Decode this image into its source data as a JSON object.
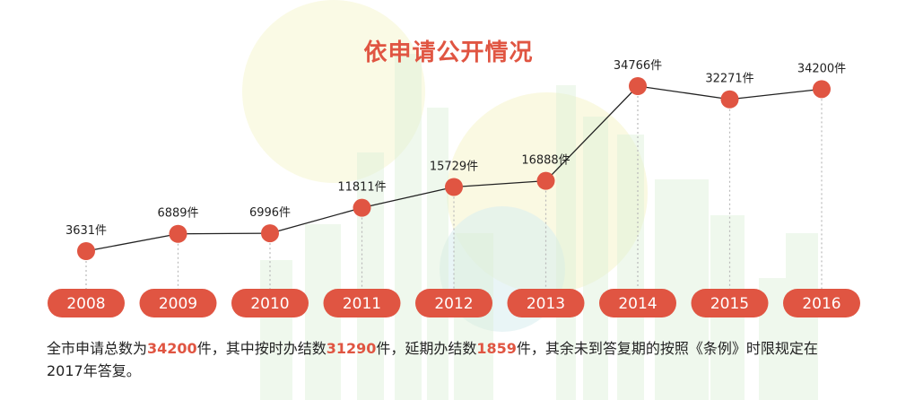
{
  "title": "依申请公开情况",
  "colors": {
    "accent": "#e05542",
    "line": "#222222",
    "dotted": "#b9b9b9",
    "pill_text": "#ffffff",
    "bg_green": "#dcefd6",
    "bg_yellow": "#f6f5cf",
    "bg_blue": "#dbeef0"
  },
  "chart_data": {
    "type": "line",
    "categories": [
      "2008",
      "2009",
      "2010",
      "2011",
      "2012",
      "2013",
      "2014",
      "2015",
      "2016"
    ],
    "values": [
      3631,
      6889,
      6996,
      11811,
      15729,
      16888,
      34766,
      32271,
      34200
    ],
    "unit": "件",
    "value_labels": [
      "3631件",
      "6889件",
      "6996件",
      "11811件",
      "15729件",
      "16888件",
      "34766件",
      "32271件",
      "34200件"
    ],
    "title": "依申请公开情况",
    "xlabel": "",
    "ylabel": "",
    "grid": false,
    "legend": "none"
  },
  "summary": {
    "parts": [
      {
        "text": "全市申请总数为",
        "hl": false
      },
      {
        "text": "34200",
        "hl": true
      },
      {
        "text": "件，其中按时办结数",
        "hl": false
      },
      {
        "text": "31290",
        "hl": true
      },
      {
        "text": "件，延期办结数",
        "hl": false
      },
      {
        "text": "1859",
        "hl": true
      },
      {
        "text": "件，其余未到答复期的按照《条例》时限规定在2017年答复。",
        "hl": false
      }
    ]
  }
}
